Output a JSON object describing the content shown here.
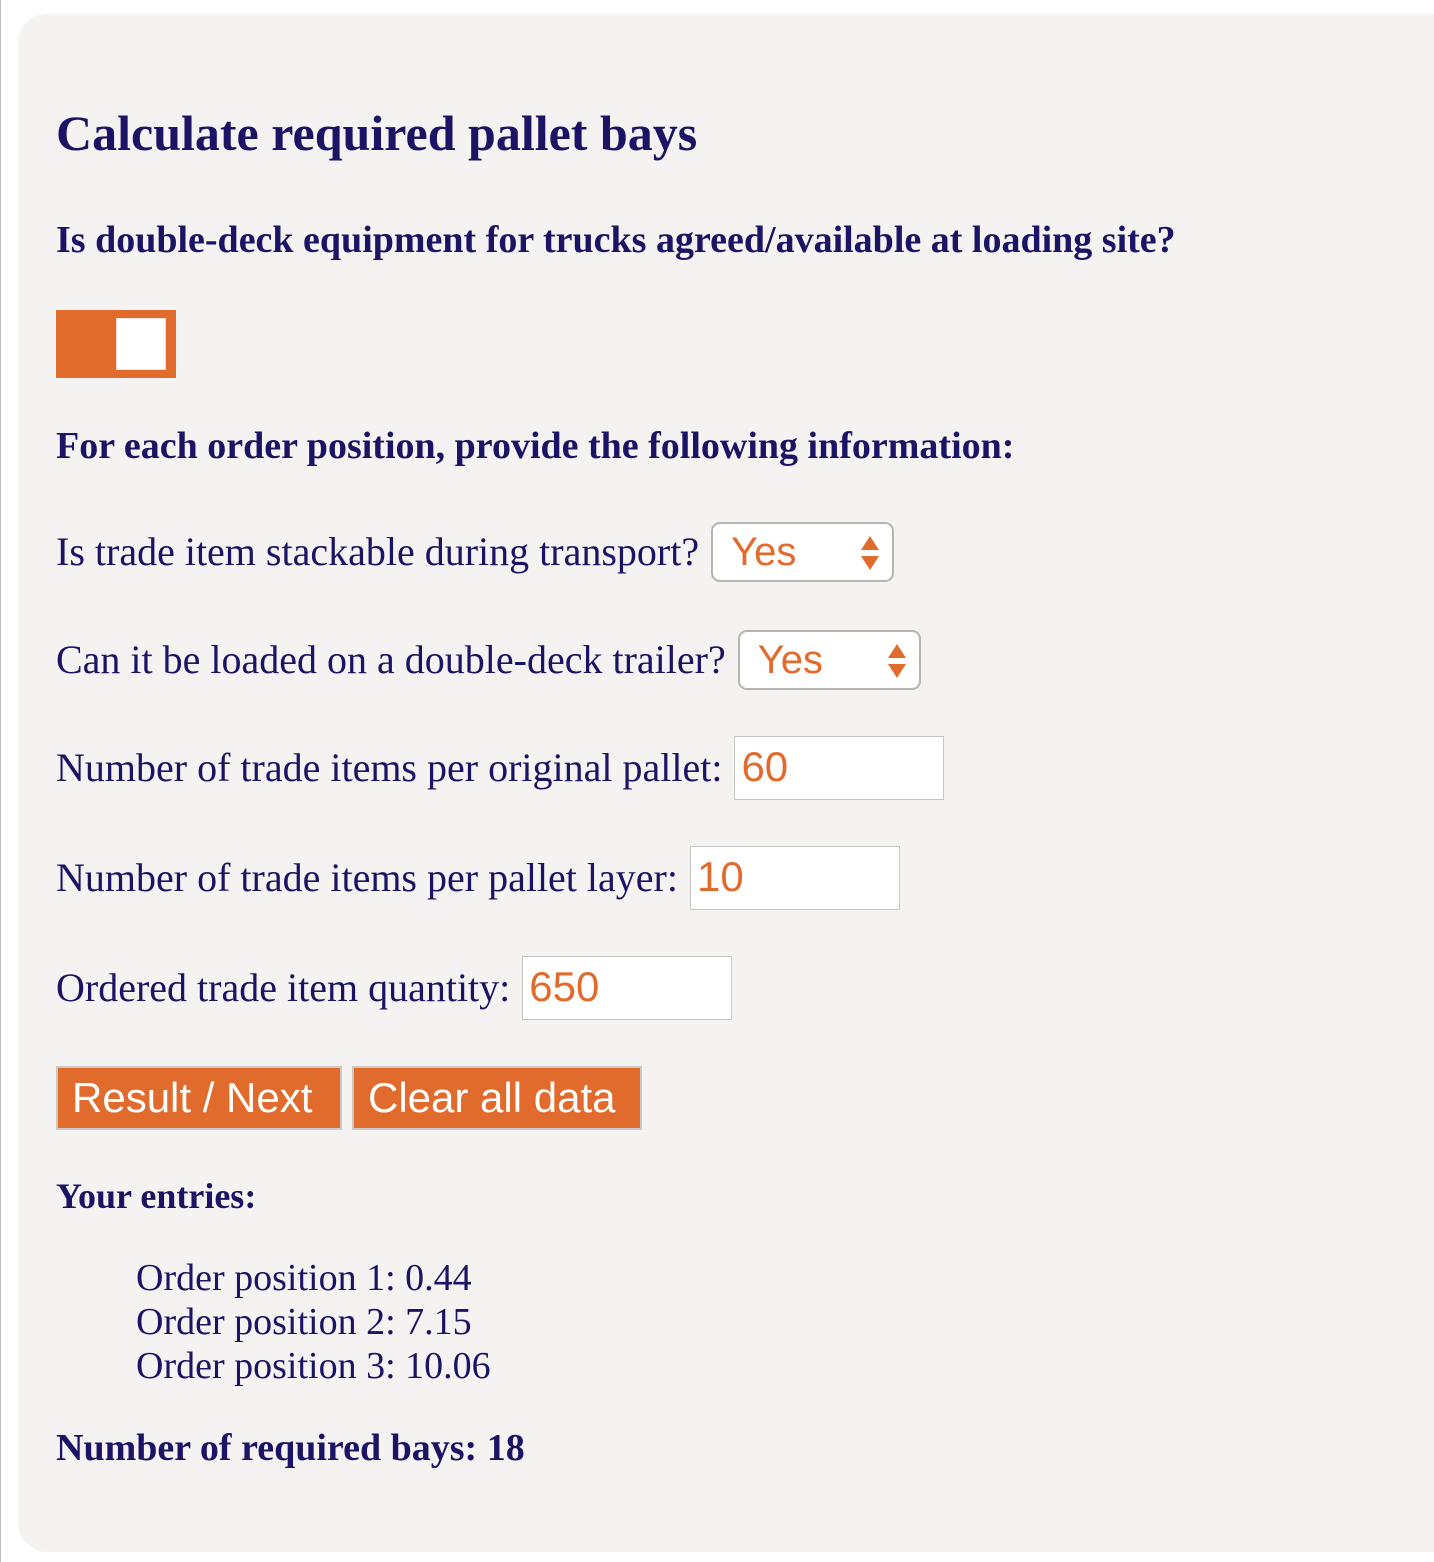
{
  "title": "Calculate required pallet bays",
  "double_deck_question": "Is double-deck equipment for trucks agreed/available at loading site?",
  "double_deck_toggle": {
    "state": "on",
    "color": "#e16b2c"
  },
  "instructions": "For each order position, provide the following information:",
  "stackable": {
    "label": "Is trade item stackable during transport?",
    "value": "Yes"
  },
  "double_deck_trailer": {
    "label": "Can it be loaded on a double-deck trailer?",
    "value": "Yes"
  },
  "items_per_pallet": {
    "label": "Number of trade items per original pallet:",
    "value": "60"
  },
  "items_per_layer": {
    "label": "Number of trade items per pallet layer:",
    "value": "10"
  },
  "ordered_quantity": {
    "label": "Ordered trade item quantity:",
    "value": "650"
  },
  "buttons": {
    "result_next": "Result / Next",
    "clear_all": "Clear all data"
  },
  "entries": {
    "title": "Your entries:",
    "items": [
      "Order position 1: 0.44",
      "Order position 2: 7.15",
      "Order position 3: 10.06"
    ]
  },
  "result": "Number of required bays: 18",
  "colors": {
    "accent": "#e16b2c",
    "text": "#1b1464",
    "background": "#f4f3f2"
  }
}
